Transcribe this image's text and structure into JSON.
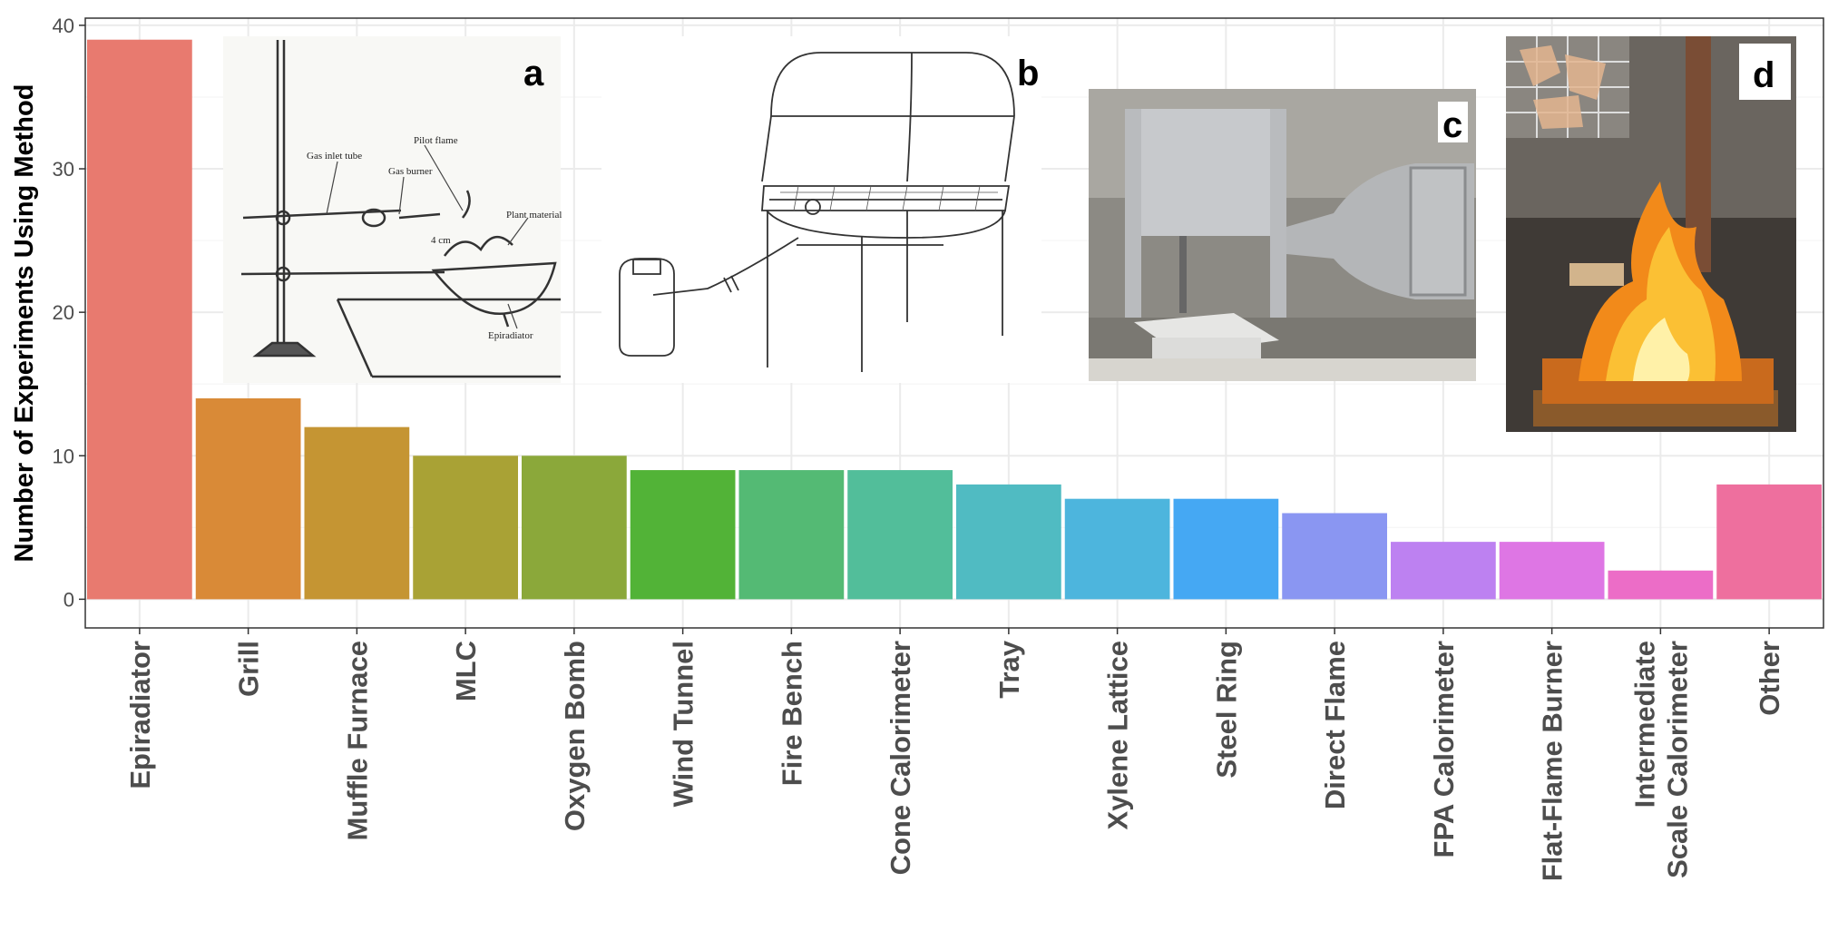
{
  "chart_data": {
    "type": "bar",
    "ylabel": "Number of Experiments Using Method",
    "xlabel": "",
    "ylim": [
      -2,
      40.5
    ],
    "yticks": [
      0,
      10,
      20,
      30,
      40
    ],
    "grid": true,
    "legend": "none",
    "categories": [
      "Epiradiator",
      "Grill",
      "Muffle Furnace",
      "MLC",
      "Oxygen Bomb",
      "Wind Tunnel",
      "Fire Bench",
      "Cone Calorimeter",
      "Tray",
      "Xylene Lattice",
      "Steel Ring",
      "Direct Flame",
      "FPA Calorimeter",
      "Flat-Flame Burner",
      "Intermediate Scale Calorimeter",
      "Other"
    ],
    "category_lines": [
      [
        "Epiradiator"
      ],
      [
        "Grill"
      ],
      [
        "Muffle Furnace"
      ],
      [
        "MLC"
      ],
      [
        "Oxygen Bomb"
      ],
      [
        "Wind Tunnel"
      ],
      [
        "Fire Bench"
      ],
      [
        "Cone Calorimeter"
      ],
      [
        "Tray"
      ],
      [
        "Xylene Lattice"
      ],
      [
        "Steel Ring"
      ],
      [
        "Direct Flame"
      ],
      [
        "FPA Calorimeter"
      ],
      [
        "Flat-Flame Burner"
      ],
      [
        "Intermediate",
        "Scale Calorimeter"
      ],
      [
        "Other"
      ]
    ],
    "values": [
      39,
      14,
      12,
      10,
      10,
      9,
      9,
      9,
      8,
      7,
      7,
      6,
      4,
      4,
      2,
      8
    ],
    "colors": [
      "#E87A6F",
      "#D98A37",
      "#C59533",
      "#A9A235",
      "#8BA83A",
      "#52B337",
      "#54BA74",
      "#52BE9A",
      "#50BBC2",
      "#4DB5DD",
      "#45A8F3",
      "#8A96F2",
      "#BD81F1",
      "#DE76E4",
      "#EC6DC7",
      "#EE6F9E"
    ]
  },
  "insets": [
    {
      "letter": "a",
      "labels": [
        "Gas inlet tube",
        "Pilot flame",
        "Gas burner",
        "Plant material",
        "4 cm",
        "Epiradiator"
      ]
    },
    {
      "letter": "b"
    },
    {
      "letter": "c"
    },
    {
      "letter": "d"
    }
  ],
  "theme": {
    "panel_border": "#333333",
    "grid_major": "#ebebeb",
    "grid_minor": "#f5f5f5"
  }
}
